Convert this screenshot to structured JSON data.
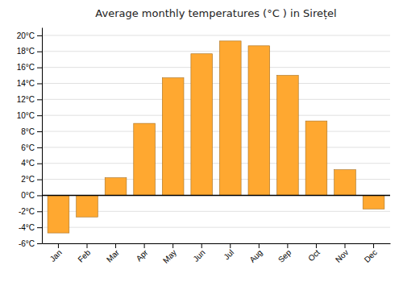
{
  "chart_data": {
    "type": "bar",
    "title": "Average monthly temperatures (°C ) in Sirețel",
    "categories": [
      "Jan",
      "Feb",
      "Mar",
      "Apr",
      "May",
      "Jun",
      "Jul",
      "Aug",
      "Sep",
      "Oct",
      "Nov",
      "Dec"
    ],
    "values": [
      -4.7,
      -2.7,
      2.2,
      9.0,
      14.7,
      17.7,
      19.3,
      18.7,
      15.0,
      9.3,
      3.2,
      -1.7
    ],
    "color": "#FFA830",
    "ylim": [
      -6,
      21
    ],
    "yticks": [
      {
        "value": -6,
        "label": "-6°C"
      },
      {
        "value": -4,
        "label": "-4°C"
      },
      {
        "value": -2,
        "label": "-2°C"
      },
      {
        "value": 0,
        "label": "0°C"
      },
      {
        "value": 2,
        "label": "2°C"
      },
      {
        "value": 4,
        "label": "4°C"
      },
      {
        "value": 6,
        "label": "6°C"
      },
      {
        "value": 8,
        "label": "8°C"
      },
      {
        "value": 10,
        "label": "10°C"
      },
      {
        "value": 12,
        "label": "12°C"
      },
      {
        "value": 14,
        "label": "14°C"
      },
      {
        "value": 16,
        "label": "16°C"
      },
      {
        "value": 18,
        "label": "18°C"
      },
      {
        "value": 20,
        "label": "20°C"
      }
    ],
    "grid": true
  }
}
